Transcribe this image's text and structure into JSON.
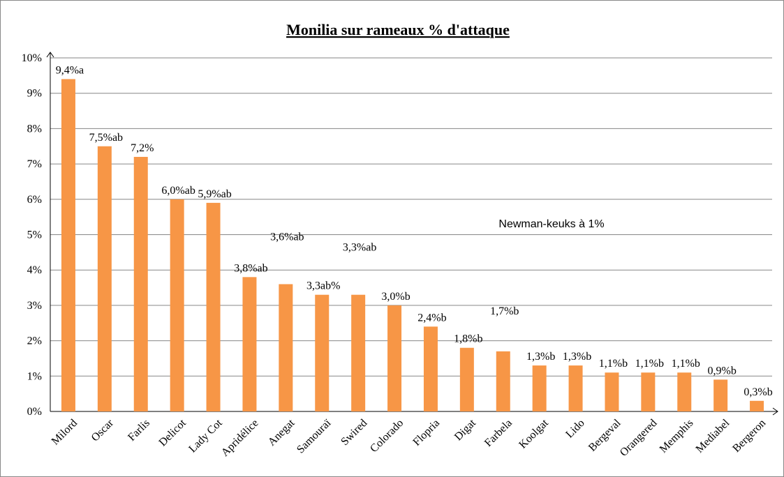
{
  "chart_data": {
    "type": "bar",
    "title": "Monilia sur rameaux % d'attaque",
    "annotation": "Newman-keuks à 1%",
    "categories": [
      "Milord",
      "Oscar",
      "Farlis",
      "Delicot",
      "Lady Cot",
      "Apridélice",
      "Anegat",
      "Samouraï",
      "Swired",
      "Colorado",
      "Flopria",
      "Digat",
      "Farbela",
      "Koolgat",
      "Lido",
      "Bergeval",
      "Orangered",
      "Memphis",
      "Mediabel",
      "Bergeron"
    ],
    "values": [
      9.4,
      7.5,
      7.2,
      6.0,
      5.9,
      3.8,
      3.6,
      3.3,
      3.3,
      3.0,
      2.4,
      1.8,
      1.7,
      1.3,
      1.3,
      1.1,
      1.1,
      1.1,
      0.9,
      0.3
    ],
    "value_labels": [
      "9,4%a",
      "7,5%ab",
      "7,2%",
      "6,0%ab",
      "5,9%ab",
      "3,8%ab",
      "3,6%ab",
      "3,3ab%",
      "3,3%ab",
      "3,0%b",
      "2,4%b",
      "1,8%b",
      "1,7%b",
      "1,3%b",
      "1,3%b",
      "1,1%b",
      "1,1%b",
      "1,1%b",
      "0,9%b",
      "0,3%b"
    ],
    "color": "#f79646",
    "ylim": [
      0,
      10
    ],
    "yticks": [
      {
        "value": 0,
        "label": "0%"
      },
      {
        "value": 1,
        "label": "1%"
      },
      {
        "value": 2,
        "label": "2%"
      },
      {
        "value": 3,
        "label": "3%"
      },
      {
        "value": 4,
        "label": "4%"
      },
      {
        "value": 5,
        "label": "5%"
      },
      {
        "value": 6,
        "label": "6%"
      },
      {
        "value": 7,
        "label": "7%"
      },
      {
        "value": 8,
        "label": "8%"
      },
      {
        "value": 9,
        "label": "9%"
      },
      {
        "value": 10,
        "label": "10%"
      }
    ],
    "grid": true
  }
}
